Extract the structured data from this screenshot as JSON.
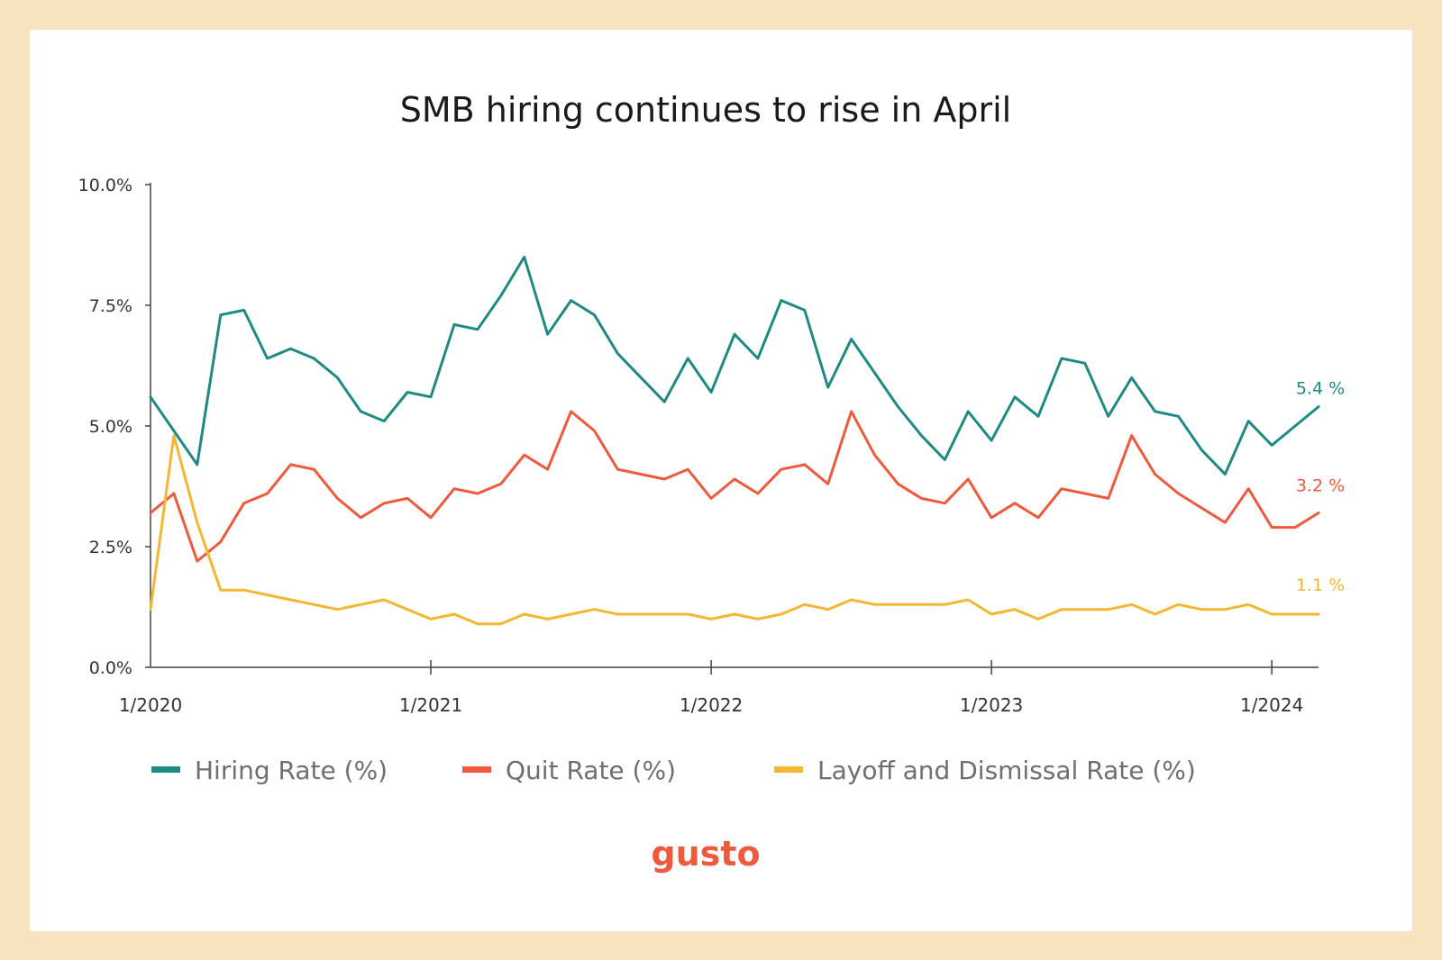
{
  "chart_data": {
    "type": "line",
    "title": "SMB hiring continues to rise in April",
    "xlabel": "",
    "ylabel": "",
    "ylim": [
      0,
      10
    ],
    "y_ticks": [
      {
        "value": 0,
        "label": "0.0%"
      },
      {
        "value": 2.5,
        "label": "2.5%"
      },
      {
        "value": 5,
        "label": "5.0%"
      },
      {
        "value": 7.5,
        "label": "7.5%"
      },
      {
        "value": 10,
        "label": "10.0%"
      }
    ],
    "x_ticks": [
      {
        "index": 0,
        "label": "1/2020"
      },
      {
        "index": 12,
        "label": "1/2021"
      },
      {
        "index": 24,
        "label": "1/2022"
      },
      {
        "index": 36,
        "label": "1/2023"
      },
      {
        "index": 48,
        "label": "1/2024"
      }
    ],
    "x_start": "1/2020",
    "x_end": "4/2024",
    "grid": false,
    "legend_position": "bottom",
    "series": [
      {
        "name": "Hiring Rate (%)",
        "color": "#1f8a84",
        "end_label": "5.4 %",
        "values": [
          5.6,
          4.9,
          4.2,
          7.3,
          7.4,
          6.4,
          6.6,
          6.4,
          6.0,
          5.3,
          5.1,
          5.7,
          5.6,
          7.1,
          7.0,
          7.7,
          8.5,
          6.9,
          7.6,
          7.3,
          6.5,
          6.0,
          5.5,
          6.4,
          5.7,
          6.9,
          6.4,
          7.6,
          7.4,
          5.8,
          6.8,
          6.1,
          5.4,
          4.8,
          4.3,
          5.3,
          4.7,
          5.6,
          5.2,
          6.4,
          6.3,
          5.2,
          6.0,
          5.3,
          5.2,
          4.5,
          4.0,
          5.1,
          4.6,
          5.0,
          5.4
        ]
      },
      {
        "name": "Quit Rate (%)",
        "color": "#ef5a3c",
        "end_label": "3.2 %",
        "values": [
          3.2,
          3.6,
          2.2,
          2.6,
          3.4,
          3.6,
          4.2,
          4.1,
          3.5,
          3.1,
          3.4,
          3.5,
          3.1,
          3.7,
          3.6,
          3.8,
          4.4,
          4.1,
          5.3,
          4.9,
          4.1,
          4.0,
          3.9,
          4.1,
          3.5,
          3.9,
          3.6,
          4.1,
          4.2,
          3.8,
          5.3,
          4.4,
          3.8,
          3.5,
          3.4,
          3.9,
          3.1,
          3.4,
          3.1,
          3.7,
          3.6,
          3.5,
          4.8,
          4.0,
          3.6,
          3.3,
          3.0,
          3.7,
          2.9,
          2.9,
          3.2
        ]
      },
      {
        "name": "Layoff and Dismissal Rate (%)",
        "color": "#f4b731",
        "end_label": "1.1 %",
        "values": [
          1.2,
          4.8,
          3.0,
          1.6,
          1.6,
          1.5,
          1.4,
          1.3,
          1.2,
          1.3,
          1.4,
          1.2,
          1.0,
          1.1,
          0.9,
          0.9,
          1.1,
          1.0,
          1.1,
          1.2,
          1.1,
          1.1,
          1.1,
          1.1,
          1.0,
          1.1,
          1.0,
          1.1,
          1.3,
          1.2,
          1.4,
          1.3,
          1.3,
          1.3,
          1.3,
          1.4,
          1.1,
          1.2,
          1.0,
          1.2,
          1.2,
          1.2,
          1.3,
          1.1,
          1.3,
          1.2,
          1.2,
          1.3,
          1.1,
          1.1,
          1.1
        ]
      }
    ]
  },
  "brand": {
    "name": "gusto",
    "color": "#ef5a3c"
  }
}
